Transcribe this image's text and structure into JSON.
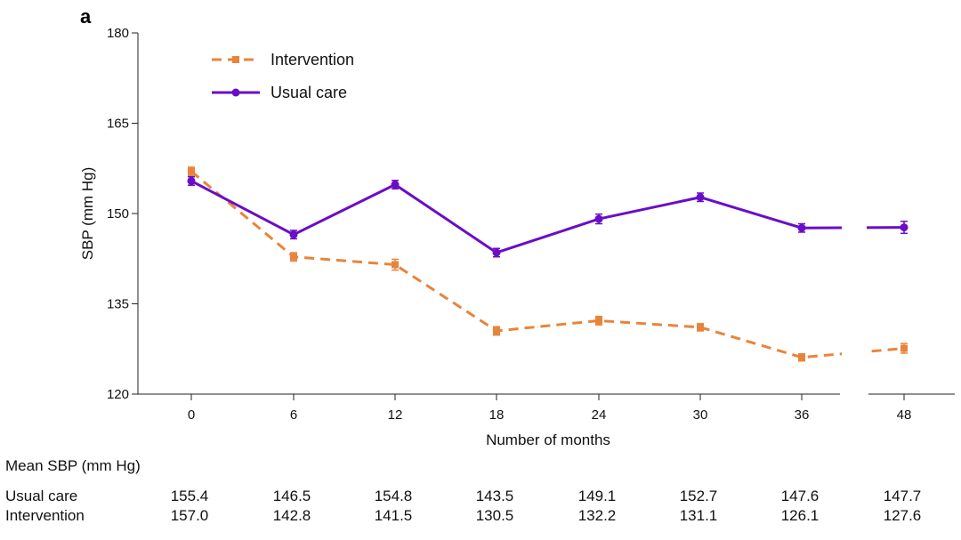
{
  "panel_label": "a",
  "chart_data": {
    "type": "line",
    "xlabel": "Number of months",
    "ylabel": "SBP (mm Hg)",
    "x": [
      0,
      6,
      12,
      18,
      24,
      30,
      36,
      48
    ],
    "x_tick_labels": [
      "0",
      "6",
      "12",
      "18",
      "24",
      "30",
      "36",
      "48"
    ],
    "y_ticks": [
      120,
      135,
      150,
      165,
      180
    ],
    "ylim": [
      120,
      180
    ],
    "legend_position": "top-left",
    "grid": false,
    "series": [
      {
        "name": "Intervention",
        "style": "dashed",
        "marker": "square",
        "color": "#E8843A",
        "values": [
          157.0,
          142.8,
          141.5,
          130.5,
          132.2,
          131.1,
          126.1,
          127.6
        ],
        "error": [
          0.7,
          0.7,
          0.9,
          0.7,
          0.7,
          0.6,
          0.6,
          0.8
        ]
      },
      {
        "name": "Usual care",
        "style": "solid",
        "marker": "circle",
        "color": "#6A0DC7",
        "values": [
          155.4,
          146.5,
          154.8,
          143.5,
          149.1,
          152.7,
          147.6,
          147.7
        ],
        "error": [
          0.7,
          0.7,
          0.7,
          0.7,
          0.8,
          0.7,
          0.7,
          1.0
        ]
      }
    ]
  },
  "table": {
    "title": "Mean SBP (mm Hg)",
    "rows": [
      {
        "label": "Usual care",
        "values": [
          "155.4",
          "146.5",
          "154.8",
          "143.5",
          "149.1",
          "152.7",
          "147.6",
          "147.7"
        ]
      },
      {
        "label": "Intervention",
        "values": [
          "157.0",
          "142.8",
          "141.5",
          "130.5",
          "132.2",
          "131.1",
          "126.1",
          "127.6"
        ]
      }
    ]
  }
}
